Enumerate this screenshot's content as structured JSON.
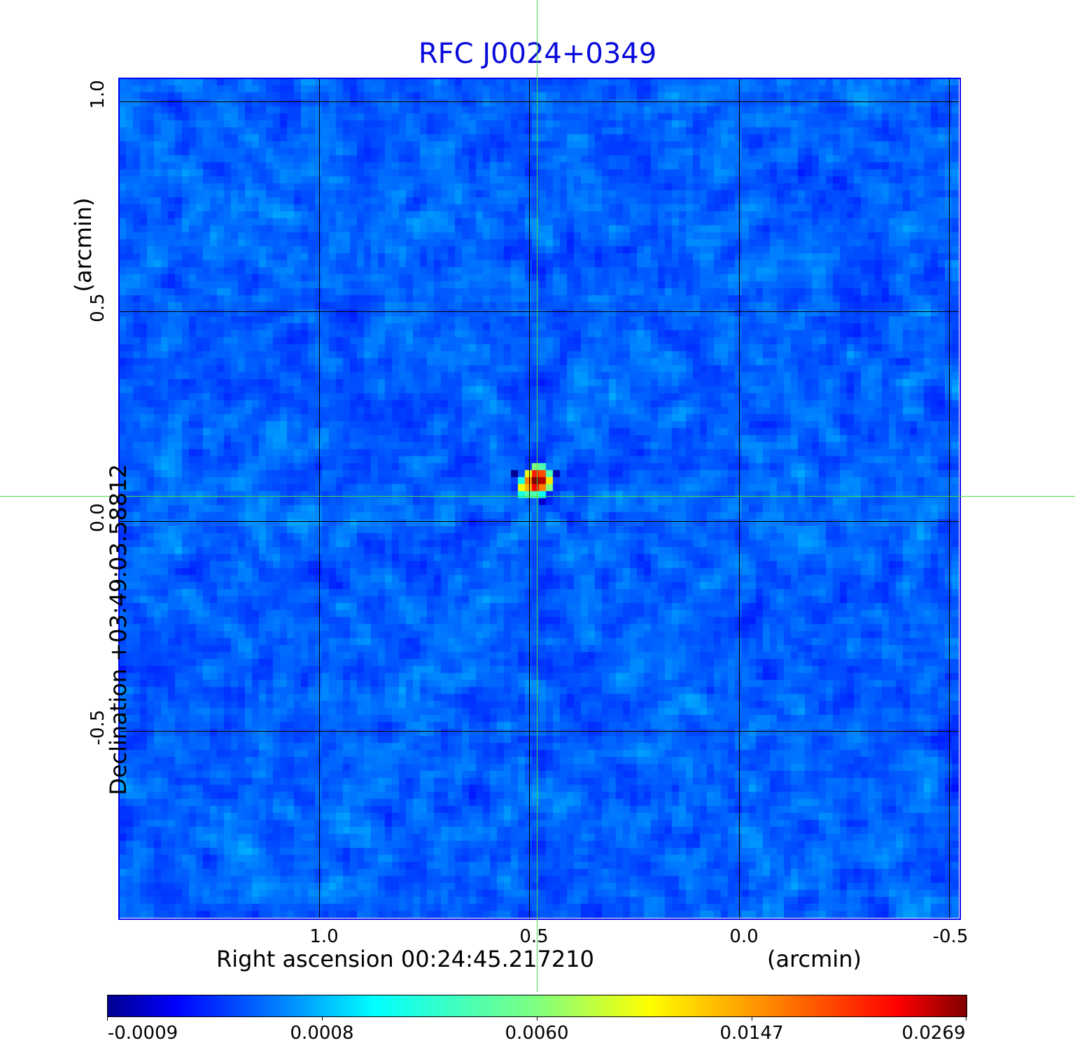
{
  "chart_data": {
    "type": "heatmap",
    "title": "RFC J0024+0349",
    "xlabel": "Right ascension  00:24:45.217210",
    "xunit": "(arcmin)",
    "ylabel": "Declination  +03:49:03.58812",
    "yunit": "(arcmin)",
    "x_ticks": [
      "1.0",
      "0.5",
      "0.0",
      "-0.5"
    ],
    "y_ticks": [
      "1.0",
      "0.5",
      "0.0",
      "-0.5"
    ],
    "xlim": [
      1.48,
      -0.52
    ],
    "ylim": [
      -0.95,
      1.05
    ],
    "grid": true,
    "colormap": "jet",
    "colorbar": {
      "ticks": [
        "-0.0009",
        "0.0008",
        "0.0060",
        "0.0147",
        "0.0269"
      ],
      "range": [
        -0.0009,
        0.0269
      ],
      "placement": "bottom"
    },
    "peak": {
      "x_arcmin": 0.49,
      "y_arcmin": 0.06,
      "value": 0.0269
    },
    "crosshair_color": "#44dd44",
    "frame_color": "#0000ee",
    "title_color": "#0a0adc"
  }
}
